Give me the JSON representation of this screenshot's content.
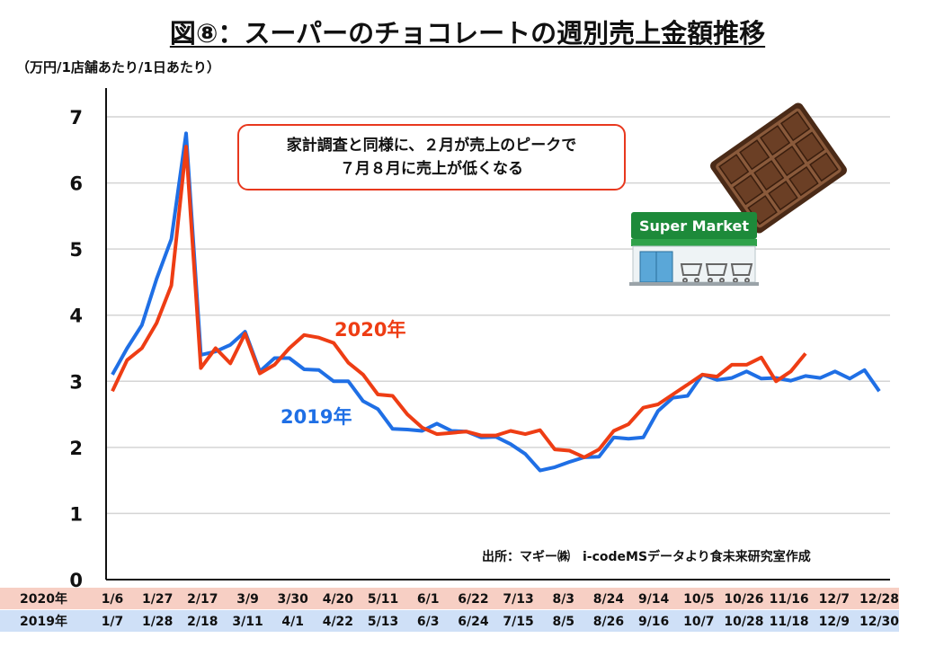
{
  "title": "図⑧：スーパーのチョコレートの週別売上金額推移",
  "unit_label": "（万円/1店舗あたり/1日あたり）",
  "callout": {
    "line1": "家計調査と同様に、２月が売上のピークで",
    "line2": "７月８月に売上が低くなる"
  },
  "source": "出所：マギー㈱　i-codeMSデータより食未来研究室作成",
  "illustrations": {
    "chocolate": "chocolate-bar-icon",
    "store": "supermarket-icon",
    "store_sign": "Super Market"
  },
  "colors": {
    "series_2020": "#ee3d14",
    "series_2019": "#1f6fe5",
    "band_2020": "#f7cfc4",
    "band_2019": "#cfe0f7",
    "grid": "#d4d4d4"
  },
  "chart_data": {
    "type": "line",
    "ylim": [
      0,
      7
    ],
    "yticks": [
      "0",
      "1",
      "2",
      "3",
      "4",
      "5",
      "6",
      "7"
    ],
    "grid": "horizontal",
    "series": [
      {
        "name": "2019年",
        "color": "#1f6fe5",
        "row_label": "2019年",
        "tick_labels": [
          "1/7",
          "1/28",
          "2/18",
          "3/11",
          "4/1",
          "4/22",
          "5/13",
          "6/3",
          "6/24",
          "7/15",
          "8/5",
          "8/26",
          "9/16",
          "10/7",
          "10/28",
          "11/18",
          "12/9",
          "12/30"
        ],
        "values": [
          3.1,
          3.5,
          3.85,
          4.55,
          5.15,
          6.75,
          3.4,
          3.45,
          3.55,
          3.75,
          3.15,
          3.35,
          3.35,
          3.18,
          3.17,
          3.0,
          3.0,
          2.7,
          2.58,
          2.28,
          2.27,
          2.25,
          2.36,
          2.25,
          2.24,
          2.15,
          2.16,
          2.05,
          1.9,
          1.65,
          1.7,
          1.78,
          1.85,
          1.86,
          2.15,
          2.13,
          2.15,
          2.55,
          2.75,
          2.78,
          3.1,
          3.02,
          3.05,
          3.15,
          3.04,
          3.05,
          3.01,
          3.08,
          3.05,
          3.15,
          3.04,
          3.17,
          2.85
        ]
      },
      {
        "name": "2020年",
        "color": "#ee3d14",
        "row_label": "2020年",
        "tick_labels": [
          "1/6",
          "1/27",
          "2/17",
          "3/9",
          "3/30",
          "4/20",
          "5/11",
          "6/1",
          "6/22",
          "7/13",
          "8/3",
          "8/24",
          "9/14",
          "10/5",
          "10/26",
          "11/16",
          "12/7",
          "12/28"
        ],
        "values": [
          2.85,
          3.32,
          3.5,
          3.88,
          4.45,
          6.55,
          3.2,
          3.5,
          3.27,
          3.72,
          3.12,
          3.25,
          3.5,
          3.7,
          3.66,
          3.58,
          3.28,
          3.1,
          2.8,
          2.78,
          2.5,
          2.3,
          2.2,
          2.22,
          2.24,
          2.18,
          2.18,
          2.25,
          2.2,
          2.26,
          1.97,
          1.95,
          1.85,
          1.97,
          2.25,
          2.35,
          2.6,
          2.65,
          2.8,
          2.95,
          3.1,
          3.07,
          3.25,
          3.25,
          3.36,
          3.0,
          3.15,
          3.42
        ]
      }
    ]
  }
}
